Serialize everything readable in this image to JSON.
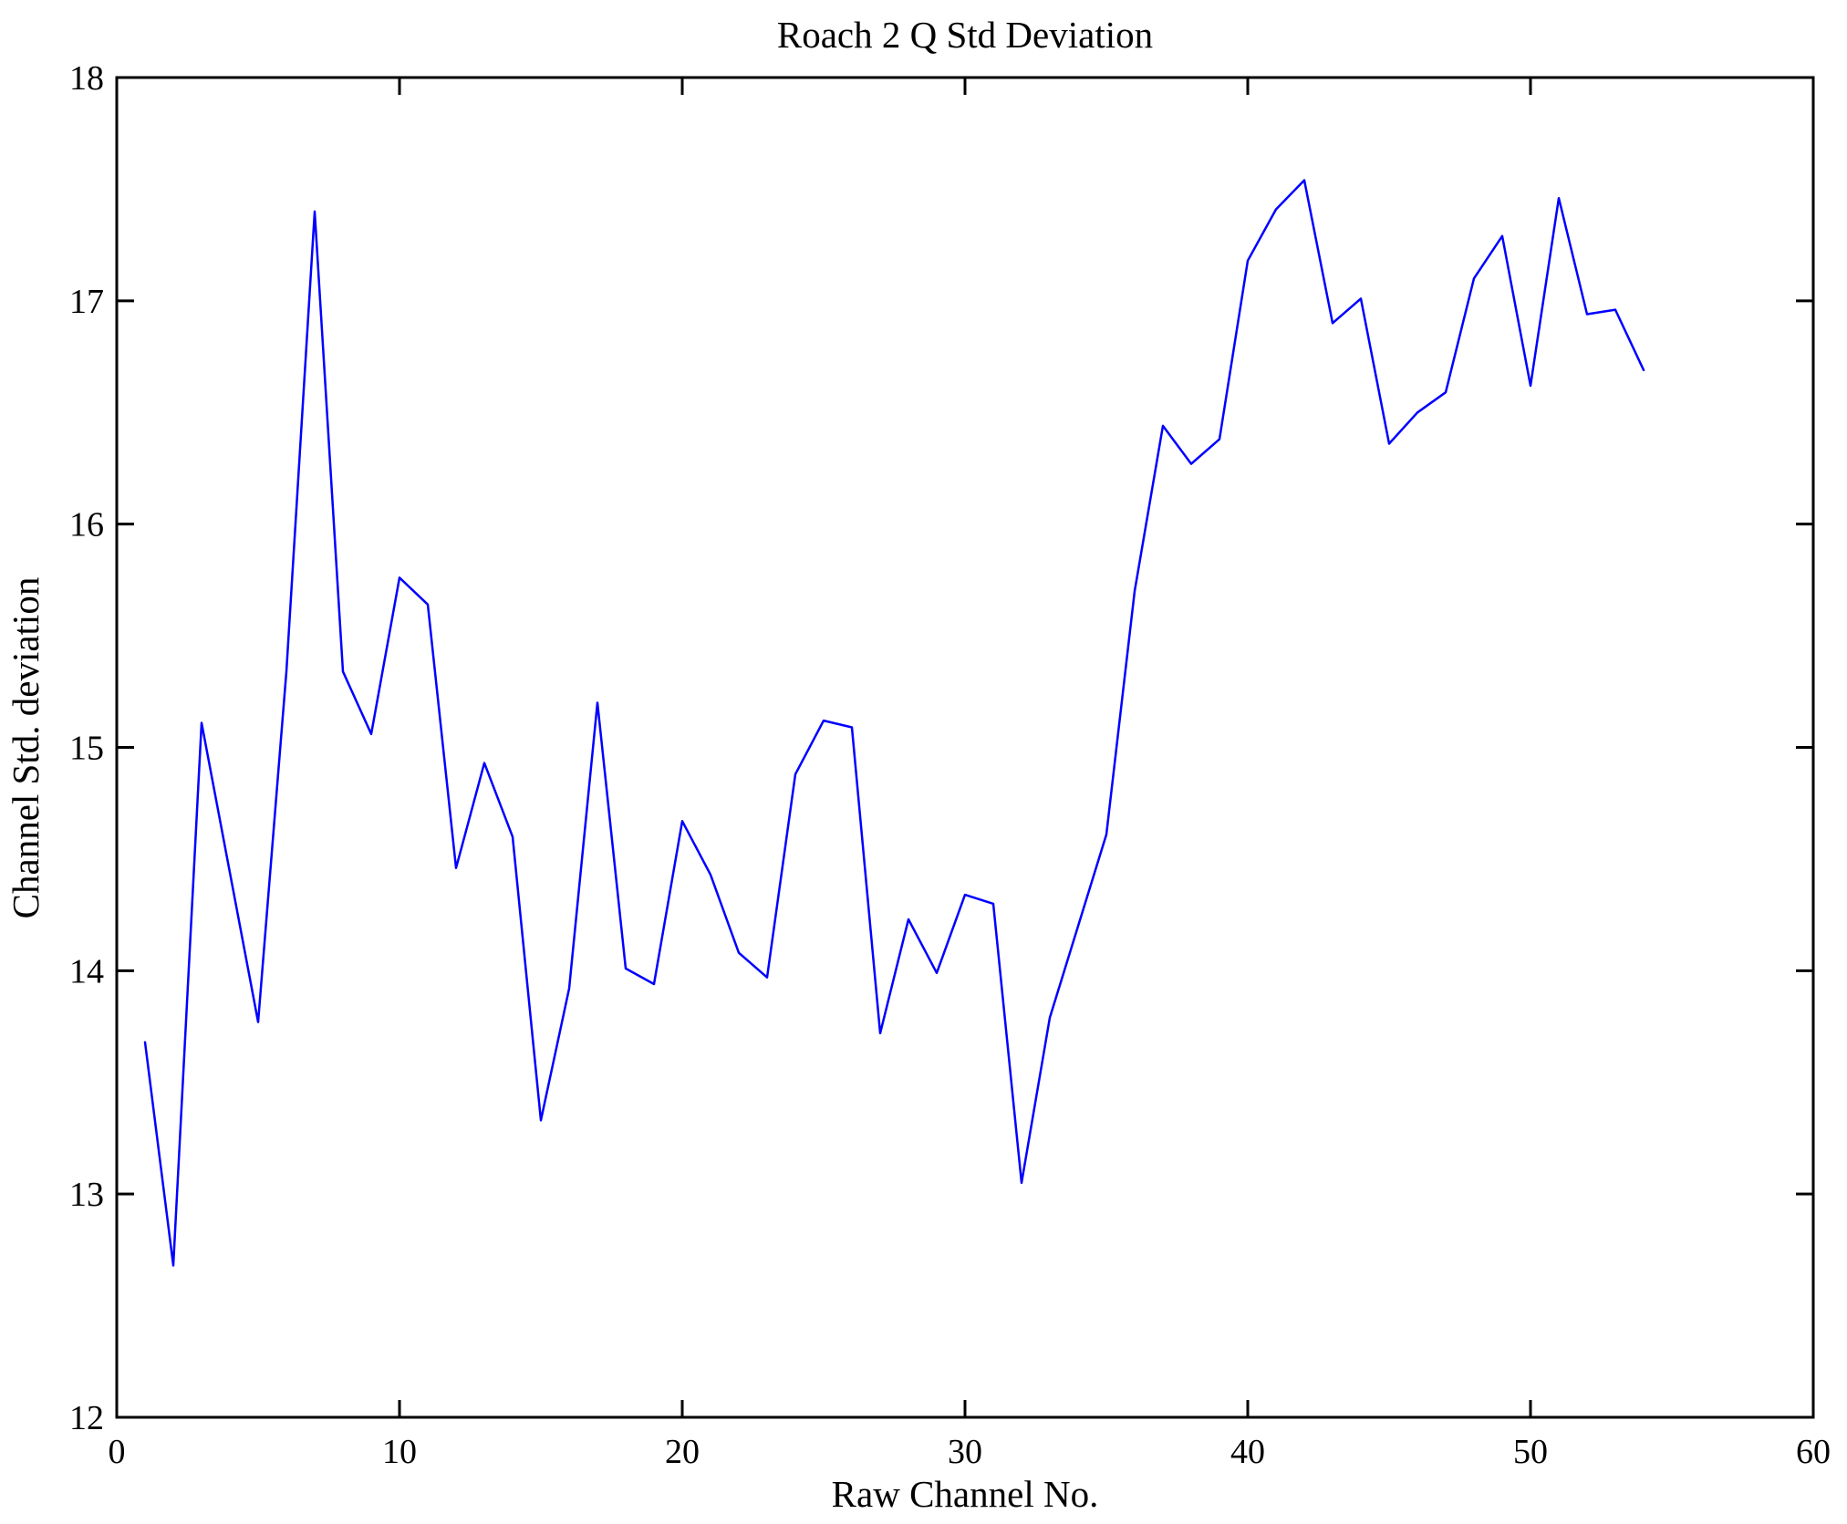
{
  "chart_data": {
    "type": "line",
    "title": "Roach 2 Q Std Deviation",
    "xlabel": "Raw Channel No.",
    "ylabel": "Channel Std. deviation",
    "xlim": [
      0,
      60
    ],
    "ylim": [
      12,
      18
    ],
    "xticks": [
      0,
      10,
      20,
      30,
      40,
      50,
      60
    ],
    "yticks": [
      12,
      13,
      14,
      15,
      16,
      17,
      18
    ],
    "grid": false,
    "legend": null,
    "line_color": "#0000FF",
    "axis_color": "#000000",
    "background_color": "#FFFFFF",
    "series": [
      {
        "name": "Channel Std. deviation",
        "x": [
          1,
          2,
          3,
          4,
          5,
          6,
          7,
          8,
          9,
          10,
          11,
          12,
          13,
          14,
          15,
          16,
          17,
          18,
          19,
          20,
          21,
          22,
          23,
          24,
          25,
          26,
          27,
          28,
          29,
          30,
          31,
          32,
          33,
          34,
          35,
          36,
          37,
          38,
          39,
          40,
          41,
          42,
          43,
          44,
          45,
          46,
          47,
          48,
          49,
          50,
          51,
          52,
          53,
          54
        ],
        "y": [
          13.68,
          12.68,
          15.11,
          14.44,
          13.77,
          15.34,
          17.4,
          15.34,
          15.06,
          15.76,
          15.64,
          14.46,
          14.93,
          14.6,
          13.33,
          13.92,
          15.2,
          14.01,
          13.94,
          14.67,
          14.43,
          14.08,
          13.97,
          14.88,
          15.12,
          15.09,
          13.72,
          14.23,
          13.99,
          14.34,
          14.3,
          13.05,
          13.79,
          14.2,
          14.61,
          15.7,
          16.44,
          16.27,
          16.38,
          17.18,
          17.41,
          17.54,
          16.9,
          17.01,
          16.36,
          16.5,
          16.59,
          17.1,
          17.29,
          16.62,
          17.46,
          16.94,
          16.96,
          16.69
        ]
      }
    ]
  }
}
